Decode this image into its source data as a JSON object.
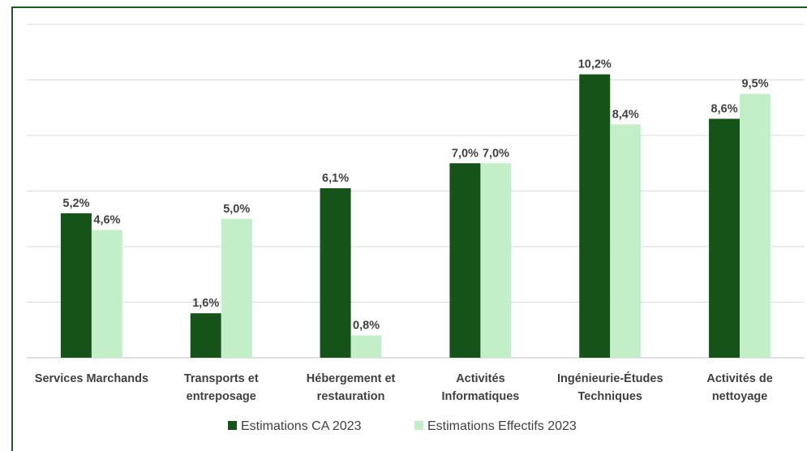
{
  "chart_data": {
    "type": "bar",
    "categories": [
      [
        "Services Marchands"
      ],
      [
        "Transports et",
        "entreposage"
      ],
      [
        "Hébergement et",
        "restauration"
      ],
      [
        "Activités",
        "Informatiques"
      ],
      [
        "Ingénieurie-Études",
        "Techniques"
      ],
      [
        "Activités de",
        "nettoyage"
      ]
    ],
    "series": [
      {
        "name": "Estimations CA 2023",
        "color": "#155319",
        "values": [
          5.2,
          1.6,
          6.1,
          7.0,
          10.2,
          8.6
        ],
        "labels": [
          "5,2%",
          "1,6%",
          "6,1%",
          "7,0%",
          "10,2%",
          "8,6%"
        ]
      },
      {
        "name": "Estimations Effectifs 2023",
        "color": "#c2efc8",
        "values": [
          4.6,
          5.0,
          0.8,
          7.0,
          8.4,
          9.5
        ],
        "labels": [
          "4,6%",
          "5,0%",
          "0,8%",
          "7,0%",
          "8,4%",
          "9,5%"
        ]
      }
    ],
    "ylim": [
      0,
      12
    ],
    "grid": true,
    "legend_position": "bottom",
    "frame_color": "#1b5e20"
  }
}
